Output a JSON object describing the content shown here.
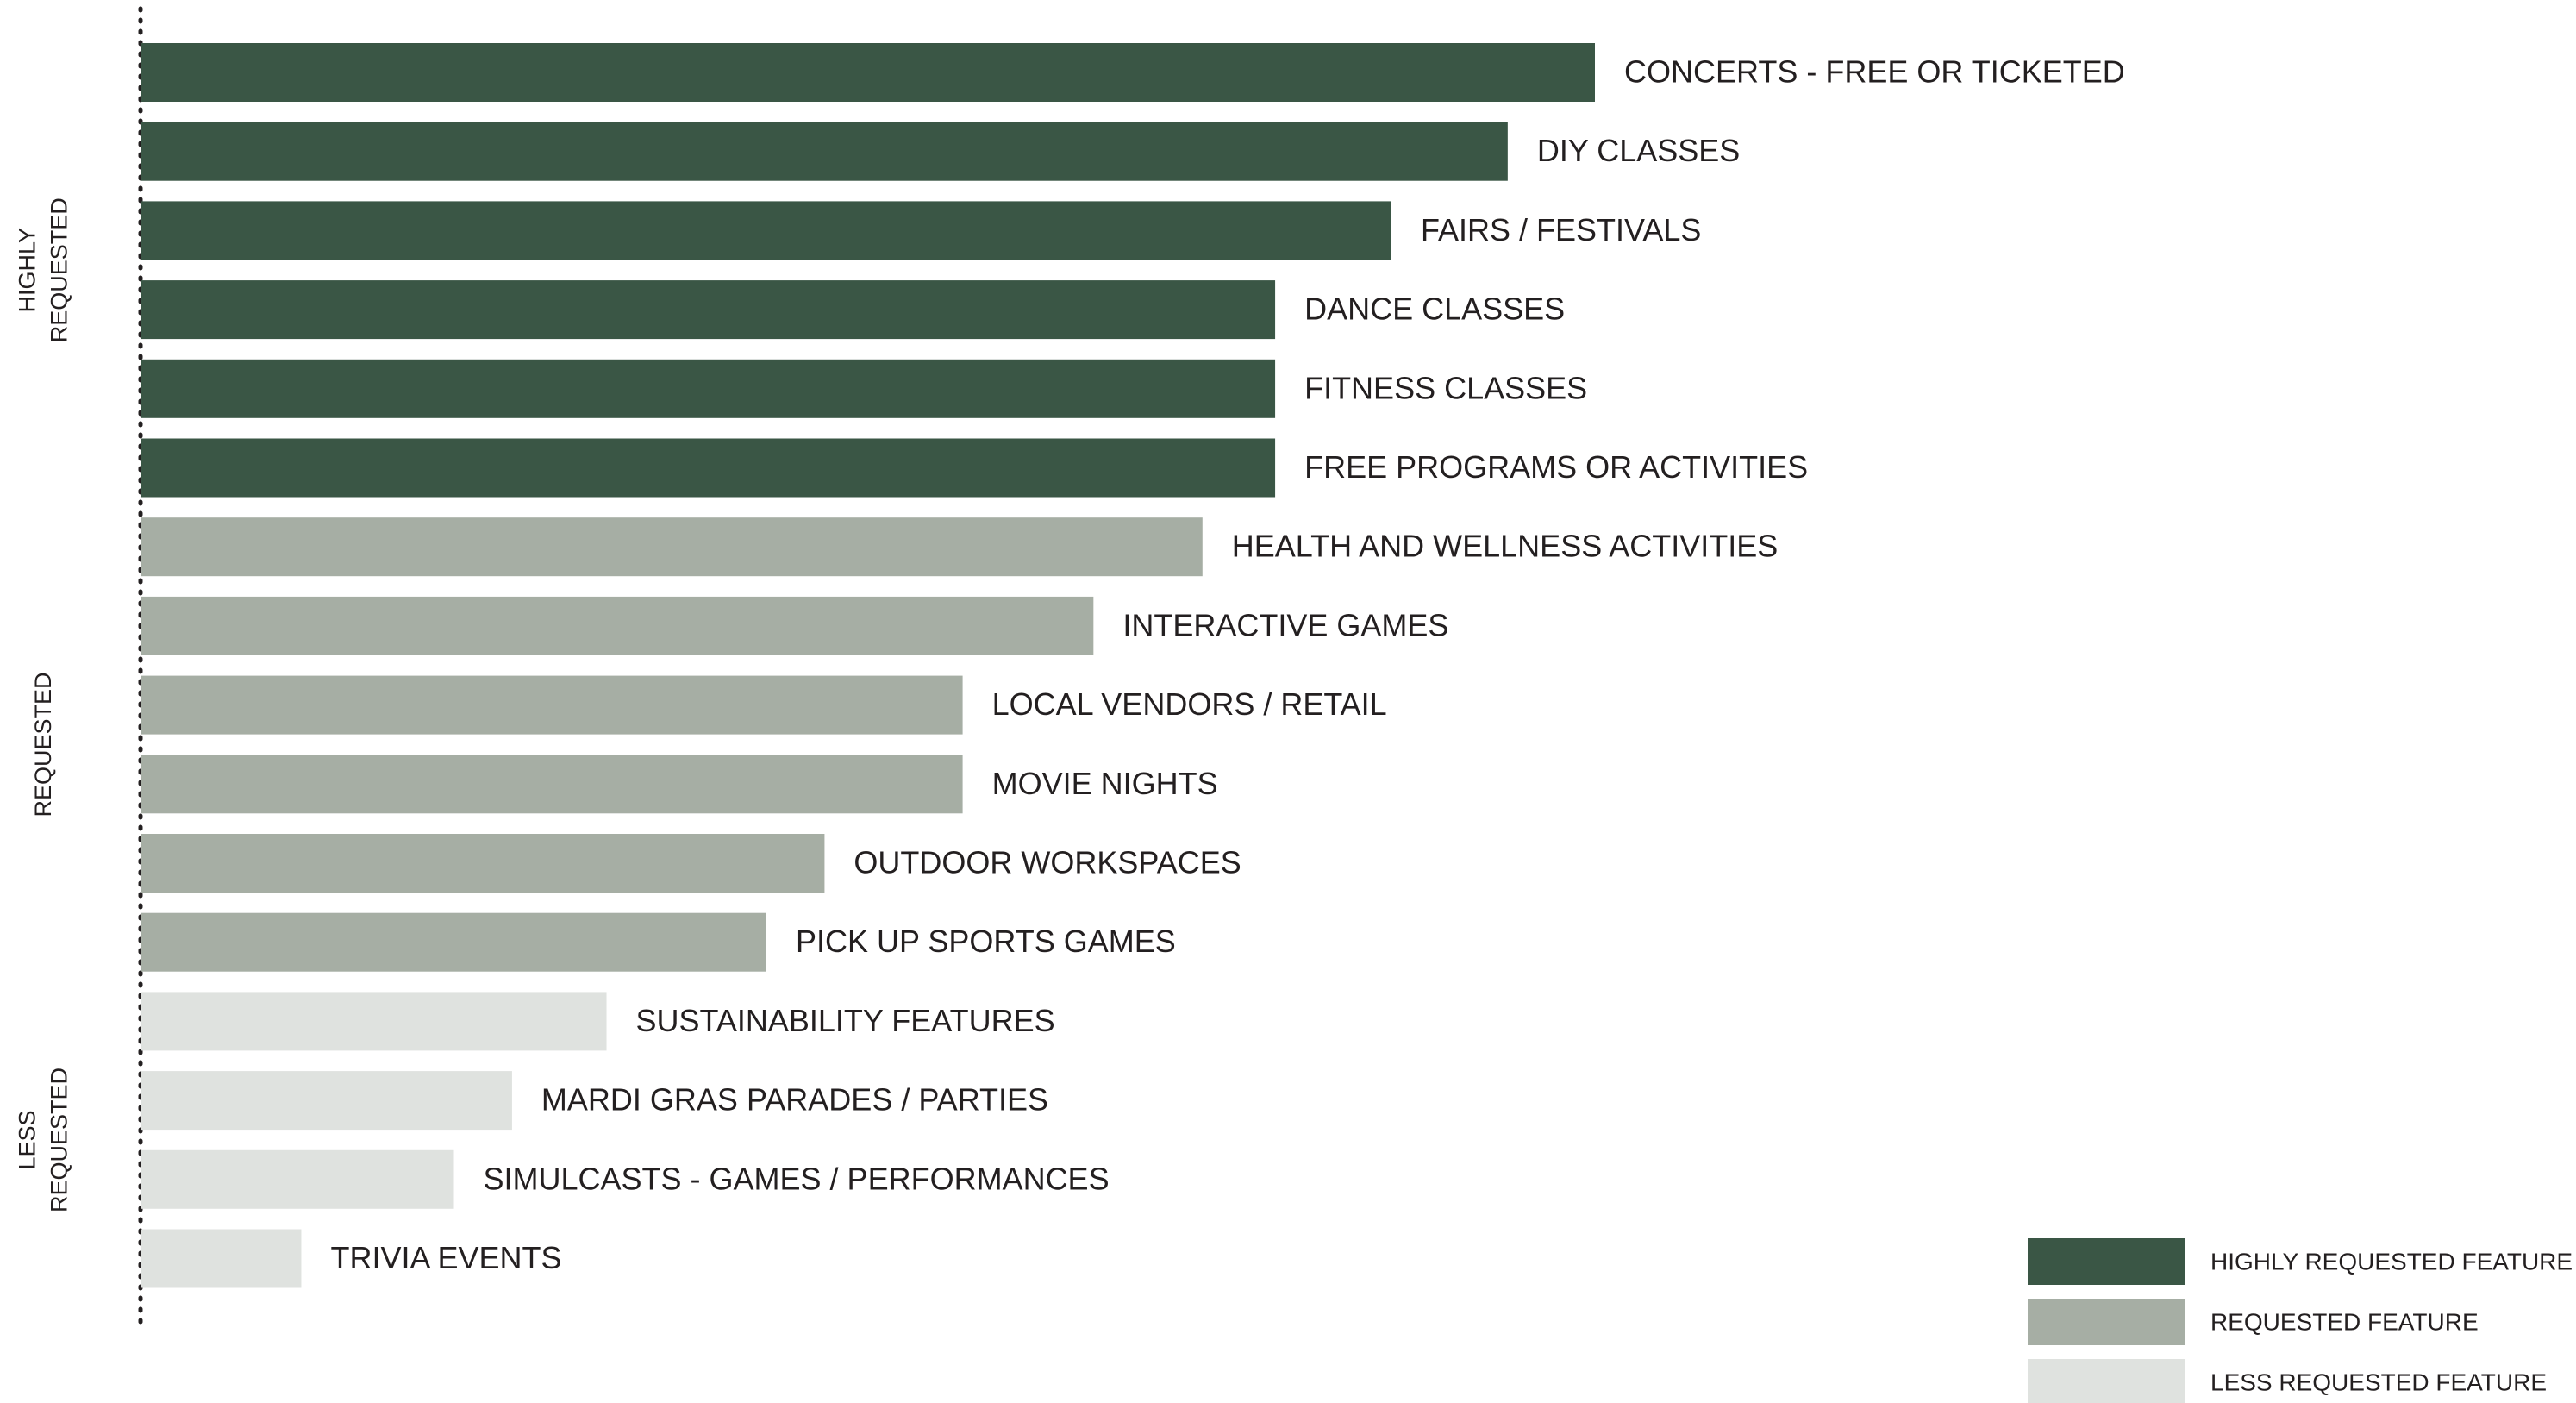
{
  "chart_data": {
    "type": "bar",
    "orientation": "horizontal",
    "categories": [
      "CONCERTS - FREE OR TICKETED",
      "DIY CLASSES",
      "FAIRS / FESTIVALS",
      "DANCE CLASSES",
      "FITNESS CLASSES",
      "FREE PROGRAMS OR ACTIVITIES",
      "HEALTH AND WELLNESS ACTIVITIES",
      "INTERACTIVE GAMES",
      "LOCAL VENDORS / RETAIL",
      "MOVIE NIGHTS",
      "OUTDOOR WORKSPACES",
      "PICK UP SPORTS GAMES",
      "SUSTAINABILITY FEATURES",
      "MARDI GRAS PARADES / PARTIES",
      "SIMULCASTS - GAMES / PERFORMANCES",
      "TRIVIA EVENTS"
    ],
    "values": [
      100,
      94,
      86,
      78,
      78,
      78,
      73,
      65.5,
      56.5,
      56.5,
      47,
      43,
      32,
      25.5,
      21.5,
      11
    ],
    "tiers": [
      "highly",
      "highly",
      "highly",
      "highly",
      "highly",
      "highly",
      "requested",
      "requested",
      "requested",
      "requested",
      "requested",
      "requested",
      "less",
      "less",
      "less",
      "less"
    ],
    "xlim": [
      0,
      100
    ],
    "axis_ticks": false,
    "grid": false,
    "group_labels": [
      {
        "tier": "highly",
        "lines": [
          "HIGHLY",
          "REQUESTED"
        ]
      },
      {
        "tier": "requested",
        "lines": [
          "REQUESTED"
        ]
      },
      {
        "tier": "less",
        "lines": [
          "LESS",
          "REQUESTED"
        ]
      }
    ],
    "legend": {
      "placement": "bottom-right",
      "entries": [
        {
          "tier": "highly",
          "label": "HIGHLY REQUESTED FEATURE"
        },
        {
          "tier": "requested",
          "label": "REQUESTED FEATURE"
        },
        {
          "tier": "less",
          "label": "LESS REQUESTED FEATURE"
        }
      ]
    },
    "colors": {
      "highly": "#3a5645",
      "requested": "#a6aea4",
      "less": "#dfe2df",
      "axis": "#231f20",
      "text": "#231f20"
    }
  }
}
